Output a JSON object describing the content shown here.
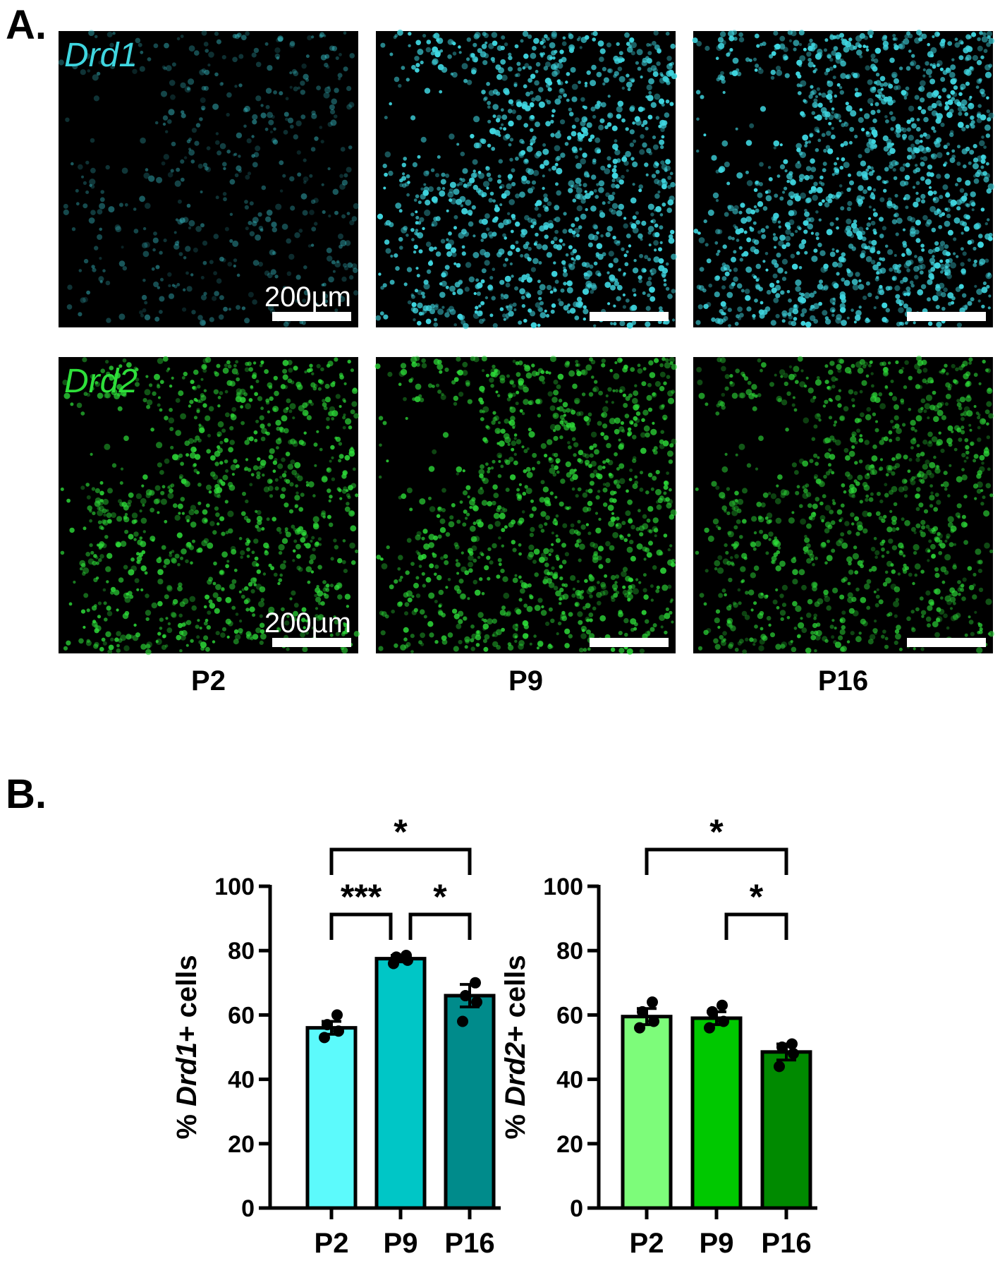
{
  "panel_a": {
    "letter": "A.",
    "rows": [
      {
        "gene": "Drd1",
        "color": "#3fd6e0",
        "scale_text": "200µm"
      },
      {
        "gene": "Drd2",
        "color": "#2ee03a",
        "scale_text": "200µm"
      }
    ],
    "ages": [
      "P2",
      "P9",
      "P16"
    ],
    "density": [
      [
        0.35,
        0.85,
        0.95
      ],
      [
        0.7,
        0.75,
        0.7
      ]
    ],
    "intensity": [
      [
        0.45,
        1.0,
        1.0
      ],
      [
        0.85,
        0.85,
        0.75
      ]
    ]
  },
  "panel_b": {
    "letter": "B."
  },
  "chart_data": [
    {
      "type": "bar",
      "ylabel_prefix": "% ",
      "ylabel_gene": "Drd1",
      "ylabel_suffix": "+ cells",
      "categories": [
        "P2",
        "P9",
        "P16"
      ],
      "values": [
        56,
        77.5,
        66
      ],
      "sem": [
        2,
        1,
        3.5
      ],
      "points": [
        [
          53,
          55,
          57,
          60
        ],
        [
          76,
          77,
          78,
          78.5
        ],
        [
          58,
          64,
          66,
          70
        ]
      ],
      "colors": [
        "#5cfafc",
        "#00c6c6",
        "#008b8b"
      ],
      "ylim": [
        0,
        100
      ],
      "yticks": [
        0,
        20,
        40,
        60,
        80,
        100
      ],
      "significance": [
        {
          "from": 0,
          "to": 1,
          "label": "***",
          "level": 1
        },
        {
          "from": 1,
          "to": 2,
          "label": "*",
          "level": 1
        },
        {
          "from": 0,
          "to": 2,
          "label": "*",
          "level": 2
        }
      ]
    },
    {
      "type": "bar",
      "ylabel_prefix": "% ",
      "ylabel_gene": "Drd2",
      "ylabel_suffix": "+ cells",
      "categories": [
        "P2",
        "P9",
        "P16"
      ],
      "values": [
        59.5,
        59,
        48.5
      ],
      "sem": [
        2.5,
        2,
        2.5
      ],
      "points": [
        [
          56,
          58,
          61,
          64
        ],
        [
          56,
          58,
          61,
          63
        ],
        [
          44,
          48,
          50,
          51
        ]
      ],
      "colors": [
        "#7dfc7a",
        "#00c800",
        "#008a00"
      ],
      "ylim": [
        0,
        100
      ],
      "yticks": [
        0,
        20,
        40,
        60,
        80,
        100
      ],
      "significance": [
        {
          "from": 1,
          "to": 2,
          "label": "*",
          "level": 1
        },
        {
          "from": 0,
          "to": 2,
          "label": "*",
          "level": 2
        }
      ]
    }
  ]
}
